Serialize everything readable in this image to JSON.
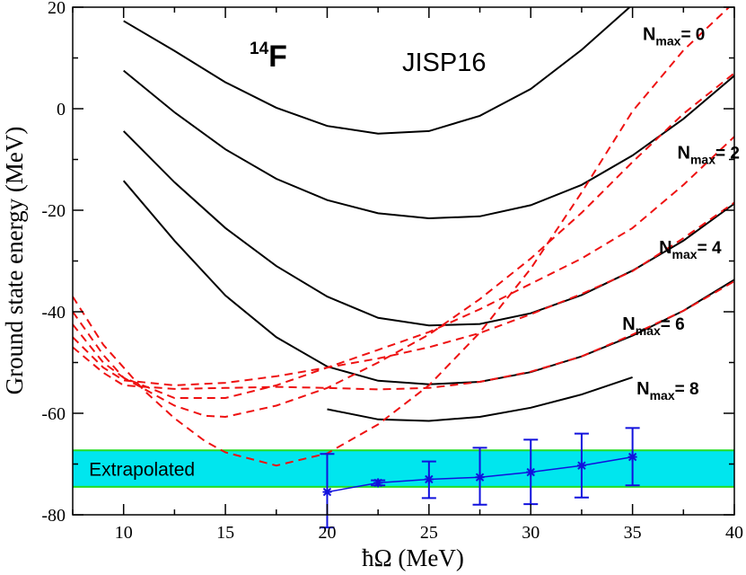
{
  "chart_data": {
    "type": "line",
    "title": "JISP16",
    "nucleus": {
      "mass_number": "14",
      "symbol": "F"
    },
    "xlabel": "ħΩ (MeV)",
    "ylabel": "Ground state energy (MeV)",
    "xlim": [
      7.5,
      40
    ],
    "ylim": [
      -80,
      20
    ],
    "xticks": [
      10,
      15,
      20,
      25,
      30,
      35,
      40
    ],
    "yticks": [
      -80,
      -60,
      -40,
      -20,
      0,
      20
    ],
    "grid": false,
    "colors": {
      "calculated": "#000000",
      "fit": "#ee1111",
      "extrapolated": "#1111dd",
      "band_fill": "#00e6ee",
      "band_edge": "#22dd22"
    },
    "series": [
      {
        "nmax_label": "N",
        "nmax_sub": "max",
        "nmax_value": "= 0",
        "label_at": [
          35.5,
          13.5
        ],
        "x": [
          10,
          12.5,
          15,
          17.5,
          20,
          22.5,
          25,
          27.5,
          30,
          32.5,
          35
        ],
        "y": [
          17.3,
          11.4,
          5.2,
          0.2,
          -3.4,
          -4.9,
          -4.4,
          -1.4,
          3.9,
          11.6,
          20.5
        ]
      },
      {
        "nmax_label": "N",
        "nmax_sub": "max",
        "nmax_value": "= 2",
        "label_at": [
          37.2,
          -9.8
        ],
        "x": [
          10,
          12.5,
          15,
          17.5,
          20,
          22.5,
          25,
          27.5,
          30,
          32.5,
          35,
          37.5,
          40
        ],
        "y": [
          7.5,
          -0.7,
          -8.0,
          -13.8,
          -18.0,
          -20.6,
          -21.6,
          -21.2,
          -19.0,
          -15.0,
          -9.2,
          -2.0,
          6.5
        ]
      },
      {
        "nmax_label": "N",
        "nmax_sub": "max",
        "nmax_value": "= 4",
        "label_at": [
          36.3,
          -28.5
        ],
        "x": [
          10,
          12.5,
          15,
          17.5,
          20,
          22.5,
          25,
          27.5,
          30,
          32.5,
          35,
          37.5,
          40
        ],
        "y": [
          -4.4,
          -14.5,
          -23.5,
          -31.0,
          -37.0,
          -41.2,
          -42.7,
          -42.4,
          -40.3,
          -36.7,
          -31.9,
          -26.0,
          -18.7
        ]
      },
      {
        "nmax_label": "N",
        "nmax_sub": "max",
        "nmax_value": "= 6",
        "label_at": [
          34.5,
          -43.5
        ],
        "x": [
          10,
          12.5,
          15,
          17.5,
          20,
          22.5,
          25,
          27.5,
          30,
          32.5,
          35,
          37.5,
          40
        ],
        "y": [
          -14.2,
          -26.0,
          -36.8,
          -45.0,
          -50.8,
          -53.6,
          -54.3,
          -53.8,
          -51.9,
          -48.8,
          -44.7,
          -39.8,
          -33.7
        ]
      },
      {
        "nmax_label": "N",
        "nmax_sub": "max",
        "nmax_value": "= 8",
        "label_at": [
          35.2,
          -56.3
        ],
        "x": [
          20,
          22.5,
          25,
          27.5,
          30,
          32.5,
          35
        ],
        "y": [
          -59.2,
          -61.2,
          -61.5,
          -60.7,
          -58.9,
          -56.3,
          -52.9
        ]
      }
    ],
    "fit_curves": [
      {
        "x": [
          7.5,
          9,
          10,
          11,
          12.5,
          14,
          15,
          17.5,
          20,
          22.5,
          25,
          27.5,
          30,
          32.5,
          35,
          37.5,
          40
        ],
        "y": [
          -37.0,
          -46.5,
          -51.0,
          -55.5,
          -61.0,
          -65.5,
          -67.7,
          -70.3,
          -67.9,
          -62.2,
          -54.5,
          -44.1,
          -31.5,
          -16.5,
          -0.5,
          11.5,
          21.0
        ]
      },
      {
        "x": [
          7.5,
          9,
          10,
          12.5,
          14,
          15,
          17.5,
          20,
          22.5,
          25,
          27.5,
          30,
          32.5,
          35,
          37.5,
          40
        ],
        "y": [
          -40.0,
          -48.5,
          -53.0,
          -58.5,
          -60.5,
          -60.7,
          -58.5,
          -55.0,
          -50.0,
          -44.5,
          -37.5,
          -29.5,
          -20.5,
          -10.5,
          -1.0,
          7.0
        ]
      },
      {
        "x": [
          7.5,
          9,
          10,
          12.5,
          15,
          17.5,
          20,
          22.5,
          25,
          27.5,
          30,
          32.5,
          35,
          37.5,
          40
        ],
        "y": [
          -42.5,
          -50.0,
          -53.0,
          -57.0,
          -57.0,
          -54.5,
          -51.0,
          -47.5,
          -44.0,
          -39.5,
          -34.5,
          -29.5,
          -23.5,
          -15.0,
          -5.5
        ]
      },
      {
        "x": [
          7.5,
          9,
          10,
          12.5,
          15,
          17.5,
          20,
          22.5,
          25,
          27.5,
          30,
          32.5,
          35,
          37.5,
          40
        ],
        "y": [
          -45.0,
          -51.0,
          -53.5,
          -54.5,
          -54.0,
          -52.7,
          -51.0,
          -49.2,
          -47.0,
          -44.2,
          -40.5,
          -36.5,
          -32.0,
          -25.5,
          -18.5
        ]
      },
      {
        "x": [
          7.5,
          9,
          10,
          12.5,
          15,
          17.5,
          20,
          22.5,
          25,
          27.5,
          30,
          32.5,
          35,
          37.5,
          40
        ],
        "y": [
          -47.0,
          -52.0,
          -54.5,
          -55.2,
          -55.0,
          -54.8,
          -55.0,
          -55.3,
          -55.0,
          -53.8,
          -51.8,
          -48.8,
          -44.5,
          -39.8,
          -34.0
        ]
      }
    ],
    "extrapolated": {
      "label": "Extrapolated",
      "band": [
        -74.5,
        -67.3
      ],
      "x": [
        20,
        22.5,
        25,
        27.5,
        30,
        32.5,
        35
      ],
      "y": [
        -75.5,
        -73.7,
        -73.0,
        -72.6,
        -71.6,
        -70.3,
        -68.6
      ],
      "yerr_low": [
        7.0,
        0.5,
        3.7,
        5.4,
        6.3,
        6.3,
        5.6
      ],
      "yerr_high": [
        7.5,
        0.5,
        3.5,
        5.8,
        6.4,
        6.3,
        5.7
      ]
    }
  }
}
